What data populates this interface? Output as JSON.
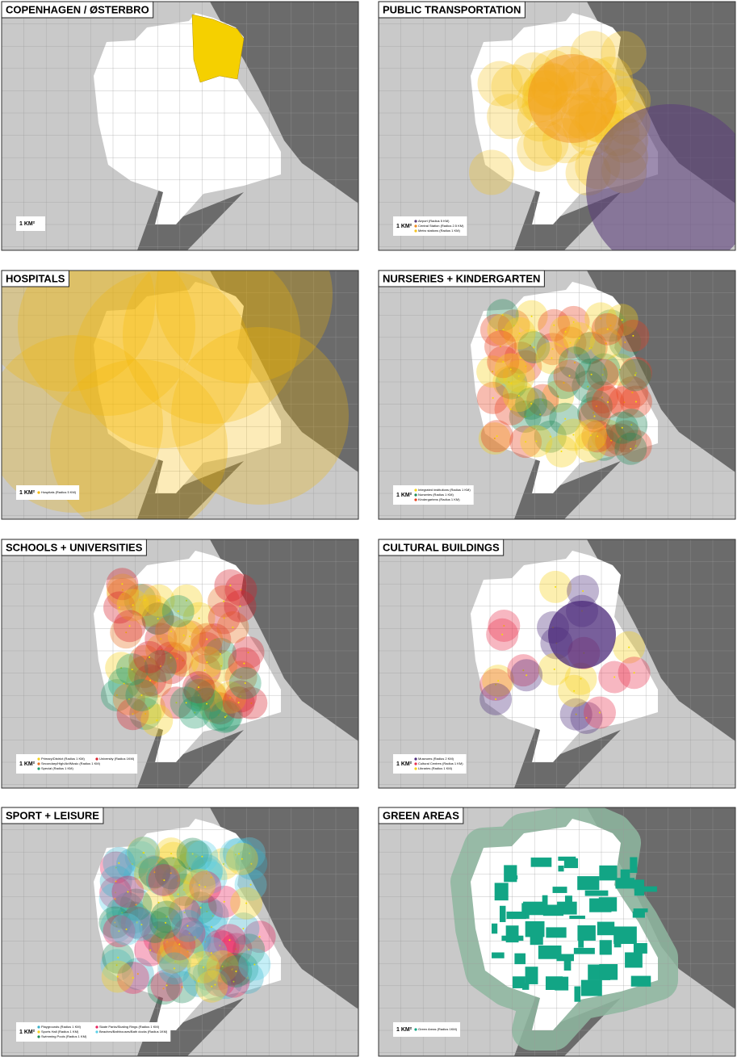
{
  "panels": [
    {
      "title": "COPENHAGEN / ØSTERBRO",
      "scale": "1 KM²",
      "legend": []
    },
    {
      "title": "PUBLIC TRANSPORTATION",
      "scale": "1 KM²",
      "legend": [
        {
          "label": "Airport (Radius 5 KM)",
          "color": "#5b3f7a"
        },
        {
          "label": "Central Station (Radius 2.5 KM)",
          "color": "#f08a1c"
        },
        {
          "label": "Metro stations (Radius 1 KM)",
          "color": "#f5c21b"
        }
      ]
    },
    {
      "title": "HOSPITALS",
      "scale": "1 KM²",
      "legend": [
        {
          "label": "Hospitals (Radius 5 KM)",
          "color": "#f5b800"
        }
      ]
    },
    {
      "title": "NURSERIES + KINDERGARTEN",
      "scale": "1 KM²",
      "legend": [
        {
          "label": "Integrated institutions (Radius 1 KM)",
          "color": "#f5d21b"
        },
        {
          "label": "Nurseries (Radius 1 KM)",
          "color": "#1f8a5a"
        },
        {
          "label": "Kindergartens (Radius 1 KM)",
          "color": "#e8401c"
        }
      ]
    },
    {
      "title": "SCHOOLS + UNIVERSITIES",
      "scale": "1 KM²",
      "legend": [
        {
          "label": "Primary/District (Radius 1 KM)",
          "color": "#f5d21b"
        },
        {
          "label": "Secondary/High/Art/Music (Radius 1 KM)",
          "color": "#e8701c"
        },
        {
          "label": "Special (Radius 1 KM)",
          "color": "#1f9a6a"
        },
        {
          "label": "University (Radius 1KM)",
          "color": "#d8202c"
        }
      ]
    },
    {
      "title": "CULTURAL BUILDINGS",
      "scale": "1 KM²",
      "legend": [
        {
          "label": "Museums (Radius 2 KM)",
          "color": "#4b2a7a"
        },
        {
          "label": "Cultural Centres (Radius 1 KM)",
          "color": "#e8304c"
        },
        {
          "label": "Libraries (Radius 1 KM)",
          "color": "#f5d21b"
        }
      ]
    },
    {
      "title": "SPORT + LEISURE",
      "scale": "1 KM²",
      "legend": [
        {
          "label": "Playgrounds (Radius 1 KM)",
          "color": "#3ab0c8"
        },
        {
          "label": "Sports Hall (Radius 1 KM)",
          "color": "#f5d21b"
        },
        {
          "label": "Swimming Pools (Radius 1 KM)",
          "color": "#1f8a5a"
        },
        {
          "label": "Skate Parks/Skating Rings (Radius 1 KM)",
          "color": "#e8205c"
        },
        {
          "label": "Beaches/Bathhouses/Bath docks (Radius 1KM)",
          "color": "#5ad0e8"
        }
      ]
    },
    {
      "title": "GREEN AREAS",
      "scale": "1 KM²",
      "legend": [
        {
          "label": "Green Areas (Radius 1KM)",
          "color": "#12a585"
        }
      ]
    }
  ]
}
